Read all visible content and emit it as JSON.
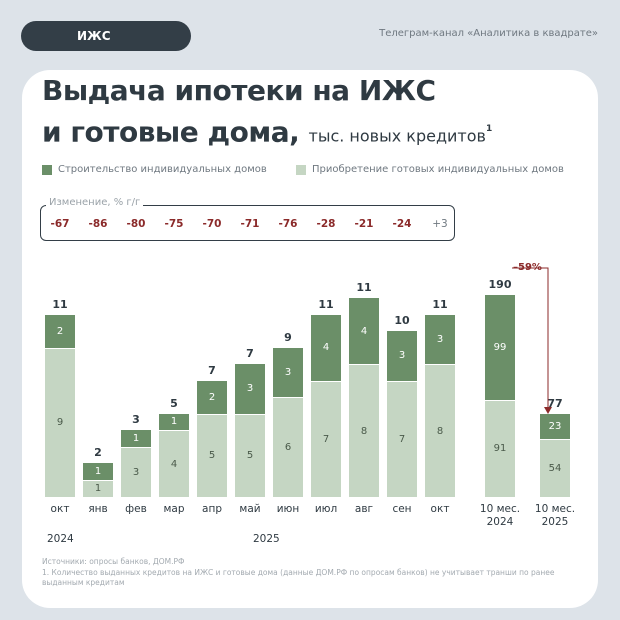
{
  "header": {
    "tag": "ИЖС",
    "channel": "Телеграм-канал «Аналитика в квадрате»"
  },
  "title": {
    "line1": "Выдача ипотеки на ИЖС",
    "line2": "и готовые дома,",
    "unit": "тыс. новых кредитов",
    "footnote_mark": "1"
  },
  "colors": {
    "construction": "#6b8f68",
    "ready": "#c5d6c3",
    "negative": "#8b2a2a"
  },
  "chart_data": {
    "type": "bar",
    "stacked": true,
    "categories": [
      "окт",
      "янв",
      "фев",
      "мар",
      "апр",
      "май",
      "июн",
      "июл",
      "авг",
      "сен",
      "окт"
    ],
    "years": [
      "2024",
      "2025"
    ],
    "series": [
      {
        "name": "Строительство индивидуальных домов",
        "values": [
          2,
          1,
          1,
          1,
          2,
          3,
          3,
          4,
          4,
          3,
          3
        ]
      },
      {
        "name": "Приобретение готовых индивидуальных домов",
        "values": [
          9,
          1,
          3,
          4,
          5,
          5,
          6,
          7,
          8,
          7,
          8
        ]
      }
    ],
    "totals": [
      "11",
      "2",
      "3",
      "5",
      "7",
      "7",
      "9",
      "11",
      "11",
      "10",
      "11"
    ],
    "change_label": "Изменение, % г/г",
    "change": [
      "-67",
      "-86",
      "-80",
      "-75",
      "-70",
      "-71",
      "-76",
      "-28",
      "-21",
      "-24",
      "+3"
    ],
    "summary": {
      "categories": [
        [
          "10 мес.",
          "2024"
        ],
        [
          "10 мес.",
          "2025"
        ]
      ],
      "construction": [
        99,
        23
      ],
      "ready": [
        91,
        54
      ],
      "totals": [
        "190",
        "77"
      ],
      "change": "–59%"
    }
  },
  "sources": {
    "line1": "Источники: опросы банков, ДОМ.РФ",
    "line2": "1. Количество выданных кредитов на ИЖС и готовые дома (данные ДОМ.РФ по опросам банков) не учитывает транши по ранее выданным кредитам"
  }
}
